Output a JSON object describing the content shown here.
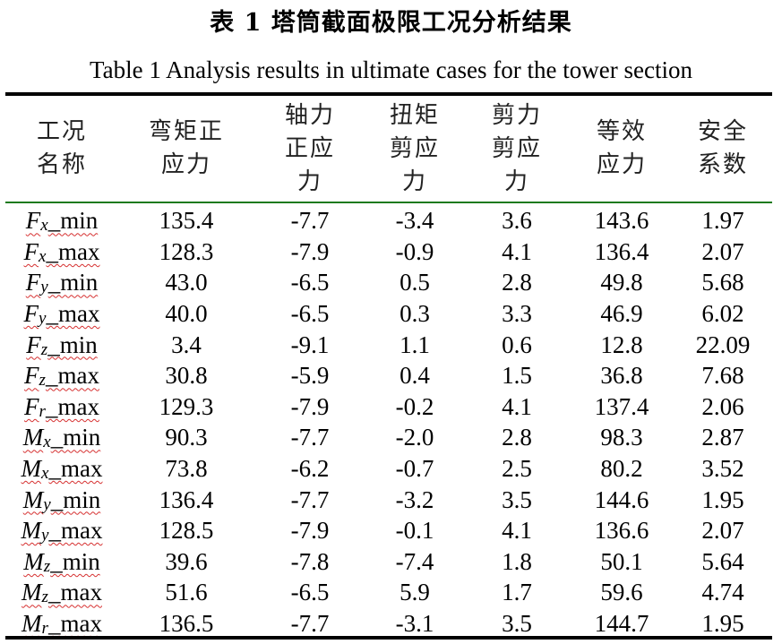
{
  "title_cn": "表 1  塔筒截面极限工况分析结果",
  "title_en": "Table 1 Analysis results in ultimate cases for the tower section",
  "headers": [
    "工况\n名称",
    "弯矩正\n应力",
    "轴力\n正应\n力",
    "扭矩\n剪应\n力",
    "剪力\n剪应\n力",
    "等效\n应力",
    "安全\n系数"
  ],
  "rows": [
    {
      "sym": "F",
      "sub": "x",
      "suffix": "_min",
      "values": [
        "135.4",
        "-7.7",
        "-3.4",
        "3.6",
        "143.6",
        "1.97"
      ]
    },
    {
      "sym": "F",
      "sub": "x",
      "suffix": "_max",
      "values": [
        "128.3",
        "-7.9",
        "-0.9",
        "4.1",
        "136.4",
        "2.07"
      ]
    },
    {
      "sym": "F",
      "sub": "y",
      "suffix": "_min",
      "values": [
        "43.0",
        "-6.5",
        "0.5",
        "2.8",
        "49.8",
        "5.68"
      ]
    },
    {
      "sym": "F",
      "sub": "y",
      "suffix": "_max",
      "values": [
        "40.0",
        "-6.5",
        "0.3",
        "3.3",
        "46.9",
        "6.02"
      ]
    },
    {
      "sym": "F",
      "sub": "z",
      "suffix": "_min",
      "values": [
        "3.4",
        "-9.1",
        "1.1",
        "0.6",
        "12.8",
        "22.09"
      ]
    },
    {
      "sym": "F",
      "sub": "z",
      "suffix": "_max",
      "values": [
        "30.8",
        "-5.9",
        "0.4",
        "1.5",
        "36.8",
        "7.68"
      ]
    },
    {
      "sym": "F",
      "sub": "r",
      "suffix": "_max",
      "values": [
        "129.3",
        "-7.9",
        "-0.2",
        "4.1",
        "137.4",
        "2.06"
      ]
    },
    {
      "sym": "M",
      "sub": "x",
      "suffix": "_min",
      "values": [
        "90.3",
        "-7.7",
        "-2.0",
        "2.8",
        "98.3",
        "2.87"
      ]
    },
    {
      "sym": "M",
      "sub": "x",
      "suffix": "_max",
      "values": [
        "73.8",
        "-6.2",
        "-0.7",
        "2.5",
        "80.2",
        "3.52"
      ]
    },
    {
      "sym": "M",
      "sub": "y",
      "suffix": "_min",
      "values": [
        "136.4",
        "-7.7",
        "-3.2",
        "3.5",
        "144.6",
        "1.95"
      ]
    },
    {
      "sym": "M",
      "sub": "y",
      "suffix": "_max",
      "values": [
        "128.5",
        "-7.9",
        "-0.1",
        "4.1",
        "136.6",
        "2.07"
      ]
    },
    {
      "sym": "M",
      "sub": "z",
      "suffix": "_min",
      "values": [
        "39.6",
        "-7.8",
        "-7.4",
        "1.8",
        "50.1",
        "5.64"
      ]
    },
    {
      "sym": "M",
      "sub": "z",
      "suffix": "_max",
      "values": [
        "51.6",
        "-6.5",
        "5.9",
        "1.7",
        "59.6",
        "4.74"
      ]
    },
    {
      "sym": "M",
      "sub": "r",
      "suffix": "_max",
      "values": [
        "136.5",
        "-7.7",
        "-3.1",
        "3.5",
        "144.7",
        "1.95"
      ]
    }
  ],
  "colors": {
    "header_rule": "#1d7a1d",
    "spell_underline": "#d63030"
  }
}
